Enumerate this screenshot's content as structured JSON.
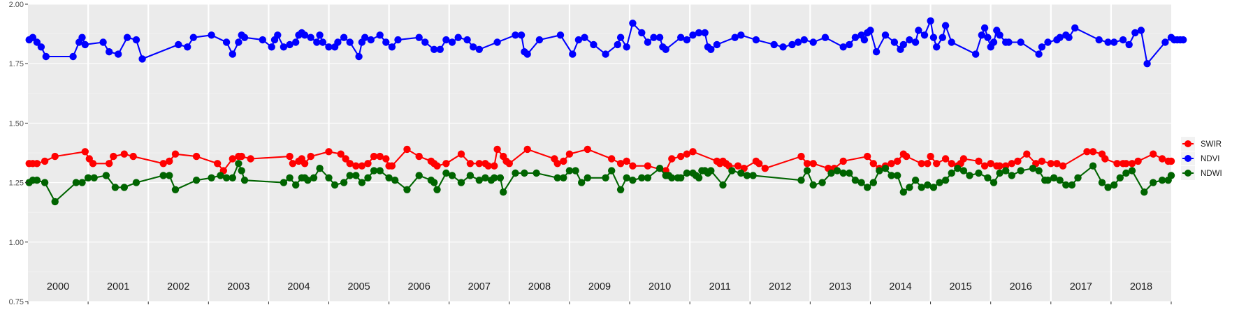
{
  "chart_data": {
    "type": "line",
    "title": "",
    "xlabel": "",
    "ylabel": "",
    "x_unit": "year (decimal)",
    "xlim": [
      1999.5,
      2018.5
    ],
    "ylim": [
      0.75,
      2.0
    ],
    "grid": true,
    "legend_position": "right",
    "yticks": [
      "0.75",
      "1.00",
      "1.25",
      "1.50",
      "1.75",
      "2.00"
    ],
    "year_labels": [
      "2000",
      "2001",
      "2002",
      "2003",
      "2004",
      "2005",
      "2006",
      "2007",
      "2008",
      "2009",
      "2010",
      "2011",
      "2012",
      "2013",
      "2014",
      "2015",
      "2016",
      "2017",
      "2018"
    ],
    "legend": [
      "SWIR",
      "NDVI",
      "NDWI"
    ],
    "colors": {
      "SWIR": "#ff0000",
      "NDVI": "#0000ff",
      "NDWI": "#006400"
    },
    "series": [
      {
        "name": "SWIR",
        "x": [
          1999.52,
          1999.58,
          1999.65,
          1999.78,
          1999.95,
          2000.45,
          2000.52,
          2000.58,
          2000.85,
          2000.92,
          2001.1,
          2001.25,
          2001.75,
          2001.85,
          2001.95,
          2002.3,
          2002.65,
          2002.75,
          2002.9,
          2003.0,
          2003.05,
          2003.2,
          2003.85,
          2003.9,
          2004.0,
          2004.05,
          2004.1,
          2004.2,
          2004.5,
          2004.7,
          2004.78,
          2004.85,
          2004.95,
          2005.05,
          2005.15,
          2005.25,
          2005.35,
          2005.45,
          2005.5,
          2005.55,
          2005.8,
          2006.0,
          2006.2,
          2006.25,
          2006.3,
          2006.45,
          2006.7,
          2006.85,
          2007.0,
          2007.1,
          2007.15,
          2007.25,
          2007.3,
          2007.4,
          2007.45,
          2007.5,
          2007.8,
          2008.25,
          2008.3,
          2008.4,
          2008.5,
          2008.8,
          2009.2,
          2009.35,
          2009.45,
          2009.55,
          2009.8,
          2010.1,
          2010.2,
          2010.35,
          2010.45,
          2010.55,
          2010.95,
          2011.0,
          2011.05,
          2011.1,
          2011.15,
          2011.3,
          2011.4,
          2011.6,
          2011.65,
          2011.75,
          2012.35,
          2012.45,
          2012.55,
          2012.8,
          2012.9,
          2013.05,
          2013.45,
          2013.55,
          2013.65,
          2013.75,
          2013.85,
          2013.95,
          2014.05,
          2014.1,
          2014.35,
          2014.45,
          2014.5,
          2014.6,
          2014.75,
          2014.85,
          2014.95,
          2015.0,
          2015.05,
          2015.3,
          2015.4,
          2015.5,
          2015.6,
          2015.65,
          2015.75,
          2015.85,
          2015.95,
          2016.1,
          2016.25,
          2016.35,
          2016.5,
          2016.6,
          2016.7,
          2017.1,
          2017.2,
          2017.35,
          2017.4,
          2017.6,
          2017.7,
          2017.75,
          2017.85,
          2017.95,
          2018.2,
          2018.35,
          2018.45,
          2018.5
        ],
        "values": [
          1.33,
          1.33,
          1.33,
          1.34,
          1.36,
          1.38,
          1.35,
          1.33,
          1.33,
          1.36,
          1.37,
          1.36,
          1.33,
          1.34,
          1.37,
          1.36,
          1.33,
          1.3,
          1.35,
          1.36,
          1.36,
          1.35,
          1.36,
          1.33,
          1.34,
          1.35,
          1.33,
          1.36,
          1.38,
          1.37,
          1.35,
          1.33,
          1.32,
          1.32,
          1.33,
          1.36,
          1.36,
          1.35,
          1.32,
          1.32,
          1.39,
          1.36,
          1.34,
          1.33,
          1.32,
          1.33,
          1.37,
          1.33,
          1.33,
          1.33,
          1.32,
          1.32,
          1.39,
          1.36,
          1.34,
          1.33,
          1.39,
          1.35,
          1.33,
          1.34,
          1.37,
          1.39,
          1.35,
          1.33,
          1.34,
          1.32,
          1.32,
          1.3,
          1.35,
          1.36,
          1.37,
          1.38,
          1.34,
          1.33,
          1.34,
          1.33,
          1.32,
          1.32,
          1.31,
          1.34,
          1.33,
          1.31,
          1.36,
          1.33,
          1.33,
          1.31,
          1.31,
          1.34,
          1.36,
          1.33,
          1.31,
          1.32,
          1.33,
          1.34,
          1.37,
          1.36,
          1.33,
          1.33,
          1.36,
          1.33,
          1.35,
          1.33,
          1.32,
          1.33,
          1.35,
          1.34,
          1.32,
          1.33,
          1.32,
          1.32,
          1.32,
          1.33,
          1.34,
          1.37,
          1.33,
          1.34,
          1.33,
          1.33,
          1.32,
          1.38,
          1.38,
          1.37,
          1.35,
          1.33,
          1.33,
          1.33,
          1.33,
          1.34,
          1.37,
          1.35,
          1.34,
          1.34
        ],
        "note": ""
      },
      {
        "name": "NDVI",
        "x": [
          1999.52,
          1999.58,
          1999.65,
          1999.72,
          1999.8,
          2000.25,
          2000.35,
          2000.4,
          2000.45,
          2000.75,
          2000.85,
          2001.0,
          2001.15,
          2001.3,
          2001.4,
          2002.0,
          2002.15,
          2002.25,
          2002.55,
          2002.8,
          2002.9,
          2003.0,
          2003.05,
          2003.1,
          2003.4,
          2003.55,
          2003.6,
          2003.65,
          2003.75,
          2003.85,
          2003.95,
          2004.0,
          2004.05,
          2004.1,
          2004.2,
          2004.3,
          2004.35,
          2004.4,
          2004.5,
          2004.6,
          2004.65,
          2004.75,
          2004.85,
          2005.0,
          2005.05,
          2005.1,
          2005.2,
          2005.35,
          2005.45,
          2005.55,
          2005.65,
          2006.0,
          2006.1,
          2006.25,
          2006.35,
          2006.45,
          2006.55,
          2006.65,
          2006.8,
          2006.9,
          2007.0,
          2007.3,
          2007.6,
          2007.7,
          2007.75,
          2007.8,
          2008.0,
          2008.35,
          2008.55,
          2008.65,
          2008.75,
          2008.9,
          2009.1,
          2009.3,
          2009.35,
          2009.45,
          2009.55,
          2009.7,
          2009.8,
          2009.9,
          2010.0,
          2010.05,
          2010.1,
          2010.35,
          2010.45,
          2010.55,
          2010.65,
          2010.75,
          2010.8,
          2010.85,
          2010.95,
          2011.25,
          2011.35,
          2011.6,
          2011.9,
          2012.05,
          2012.2,
          2012.3,
          2012.4,
          2012.55,
          2012.75,
          2013.05,
          2013.15,
          2013.25,
          2013.35,
          2013.4,
          2013.45,
          2013.5,
          2013.6,
          2013.75,
          2013.9,
          2014.0,
          2014.05,
          2014.15,
          2014.25,
          2014.3,
          2014.4,
          2014.5,
          2014.55,
          2014.6,
          2014.7,
          2014.75,
          2014.85,
          2015.25,
          2015.35,
          2015.4,
          2015.45,
          2015.5,
          2015.55,
          2015.6,
          2015.65,
          2015.75,
          2015.8,
          2016.0,
          2016.3,
          2016.35,
          2016.45,
          2016.6,
          2016.65,
          2016.75,
          2016.8,
          2016.9,
          2017.3,
          2017.45,
          2017.55,
          2017.7,
          2017.8,
          2017.9,
          2018.0,
          2018.1,
          2018.4,
          2018.5,
          2018.55,
          2018.6,
          2018.65,
          2018.7
        ],
        "values": [
          1.85,
          1.86,
          1.84,
          1.82,
          1.78,
          1.78,
          1.84,
          1.86,
          1.83,
          1.84,
          1.8,
          1.79,
          1.86,
          1.85,
          1.77,
          1.83,
          1.82,
          1.86,
          1.87,
          1.84,
          1.79,
          1.84,
          1.87,
          1.86,
          1.85,
          1.82,
          1.85,
          1.87,
          1.82,
          1.83,
          1.84,
          1.87,
          1.88,
          1.87,
          1.86,
          1.84,
          1.87,
          1.84,
          1.82,
          1.82,
          1.84,
          1.86,
          1.84,
          1.78,
          1.84,
          1.86,
          1.85,
          1.87,
          1.84,
          1.82,
          1.85,
          1.86,
          1.84,
          1.81,
          1.81,
          1.85,
          1.84,
          1.86,
          1.85,
          1.82,
          1.81,
          1.84,
          1.87,
          1.87,
          1.8,
          1.79,
          1.85,
          1.87,
          1.79,
          1.85,
          1.86,
          1.83,
          1.79,
          1.83,
          1.86,
          1.82,
          1.92,
          1.88,
          1.84,
          1.86,
          1.86,
          1.82,
          1.81,
          1.86,
          1.85,
          1.87,
          1.88,
          1.88,
          1.82,
          1.81,
          1.83,
          1.86,
          1.87,
          1.85,
          1.83,
          1.82,
          1.83,
          1.84,
          1.85,
          1.84,
          1.86,
          1.82,
          1.83,
          1.86,
          1.87,
          1.85,
          1.88,
          1.89,
          1.8,
          1.87,
          1.84,
          1.81,
          1.83,
          1.85,
          1.84,
          1.89,
          1.87,
          1.93,
          1.86,
          1.82,
          1.86,
          1.91,
          1.84,
          1.79,
          1.87,
          1.9,
          1.86,
          1.82,
          1.84,
          1.89,
          1.87,
          1.84,
          1.84,
          1.84,
          1.79,
          1.82,
          1.84,
          1.85,
          1.86,
          1.87,
          1.86,
          1.9,
          1.85,
          1.84,
          1.84,
          1.85,
          1.83,
          1.88,
          1.89,
          1.75,
          1.84,
          1.86,
          1.85,
          1.85,
          1.85,
          1.85
        ],
        "note": ""
      },
      {
        "name": "NDWI",
        "x": [
          1999.52,
          1999.58,
          1999.65,
          1999.78,
          1999.95,
          2000.3,
          2000.4,
          2000.5,
          2000.6,
          2000.8,
          2000.95,
          2001.1,
          2001.3,
          2001.75,
          2001.85,
          2001.95,
          2002.3,
          2002.55,
          2002.7,
          2002.8,
          2002.9,
          2003.0,
          2003.05,
          2003.1,
          2003.75,
          2003.85,
          2003.95,
          2004.05,
          2004.1,
          2004.15,
          2004.25,
          2004.35,
          2004.5,
          2004.6,
          2004.75,
          2004.85,
          2004.95,
          2005.05,
          2005.15,
          2005.25,
          2005.35,
          2005.5,
          2005.6,
          2005.8,
          2006.0,
          2006.2,
          2006.25,
          2006.3,
          2006.45,
          2006.55,
          2006.7,
          2006.85,
          2007.0,
          2007.1,
          2007.2,
          2007.25,
          2007.35,
          2007.4,
          2007.6,
          2007.75,
          2007.95,
          2008.3,
          2008.4,
          2008.5,
          2008.6,
          2008.7,
          2008.8,
          2009.1,
          2009.2,
          2009.35,
          2009.45,
          2009.55,
          2009.7,
          2009.8,
          2010.0,
          2010.1,
          2010.15,
          2010.2,
          2010.3,
          2010.35,
          2010.45,
          2010.55,
          2010.6,
          2010.65,
          2010.7,
          2010.75,
          2010.8,
          2010.85,
          2011.05,
          2011.2,
          2011.35,
          2011.45,
          2011.55,
          2012.35,
          2012.45,
          2012.55,
          2012.7,
          2012.85,
          2012.95,
          2013.05,
          2013.15,
          2013.25,
          2013.35,
          2013.45,
          2013.55,
          2013.65,
          2013.75,
          2013.85,
          2013.95,
          2014.05,
          2014.15,
          2014.25,
          2014.35,
          2014.45,
          2014.55,
          2014.65,
          2014.75,
          2014.85,
          2014.95,
          2015.05,
          2015.15,
          2015.3,
          2015.45,
          2015.55,
          2015.65,
          2015.75,
          2015.85,
          2016.0,
          2016.2,
          2016.3,
          2016.4,
          2016.45,
          2016.55,
          2016.65,
          2016.75,
          2016.85,
          2016.95,
          2017.2,
          2017.35,
          2017.45,
          2017.55,
          2017.65,
          2017.75,
          2017.85,
          2018.05,
          2018.2,
          2018.35,
          2018.45,
          2018.5
        ],
        "values": [
          1.25,
          1.26,
          1.26,
          1.25,
          1.17,
          1.25,
          1.25,
          1.27,
          1.27,
          1.28,
          1.23,
          1.23,
          1.25,
          1.28,
          1.28,
          1.22,
          1.26,
          1.27,
          1.28,
          1.27,
          1.27,
          1.33,
          1.3,
          1.26,
          1.25,
          1.27,
          1.24,
          1.27,
          1.27,
          1.26,
          1.27,
          1.31,
          1.27,
          1.24,
          1.25,
          1.28,
          1.28,
          1.25,
          1.27,
          1.3,
          1.3,
          1.27,
          1.26,
          1.22,
          1.28,
          1.26,
          1.25,
          1.22,
          1.29,
          1.28,
          1.25,
          1.28,
          1.26,
          1.27,
          1.26,
          1.27,
          1.27,
          1.21,
          1.29,
          1.29,
          1.29,
          1.27,
          1.27,
          1.3,
          1.3,
          1.25,
          1.27,
          1.27,
          1.3,
          1.22,
          1.27,
          1.26,
          1.27,
          1.27,
          1.31,
          1.28,
          1.28,
          1.27,
          1.27,
          1.27,
          1.29,
          1.29,
          1.28,
          1.27,
          1.3,
          1.3,
          1.29,
          1.3,
          1.24,
          1.3,
          1.29,
          1.28,
          1.28,
          1.26,
          1.3,
          1.24,
          1.25,
          1.29,
          1.3,
          1.29,
          1.29,
          1.26,
          1.25,
          1.23,
          1.25,
          1.3,
          1.31,
          1.28,
          1.28,
          1.21,
          1.23,
          1.26,
          1.23,
          1.24,
          1.23,
          1.25,
          1.26,
          1.29,
          1.31,
          1.3,
          1.28,
          1.29,
          1.27,
          1.25,
          1.29,
          1.3,
          1.28,
          1.3,
          1.31,
          1.3,
          1.26,
          1.26,
          1.27,
          1.26,
          1.24,
          1.24,
          1.27,
          1.32,
          1.25,
          1.23,
          1.24,
          1.27,
          1.29,
          1.3,
          1.21,
          1.25,
          1.26,
          1.26,
          1.28
        ],
        "note": ""
      }
    ]
  }
}
